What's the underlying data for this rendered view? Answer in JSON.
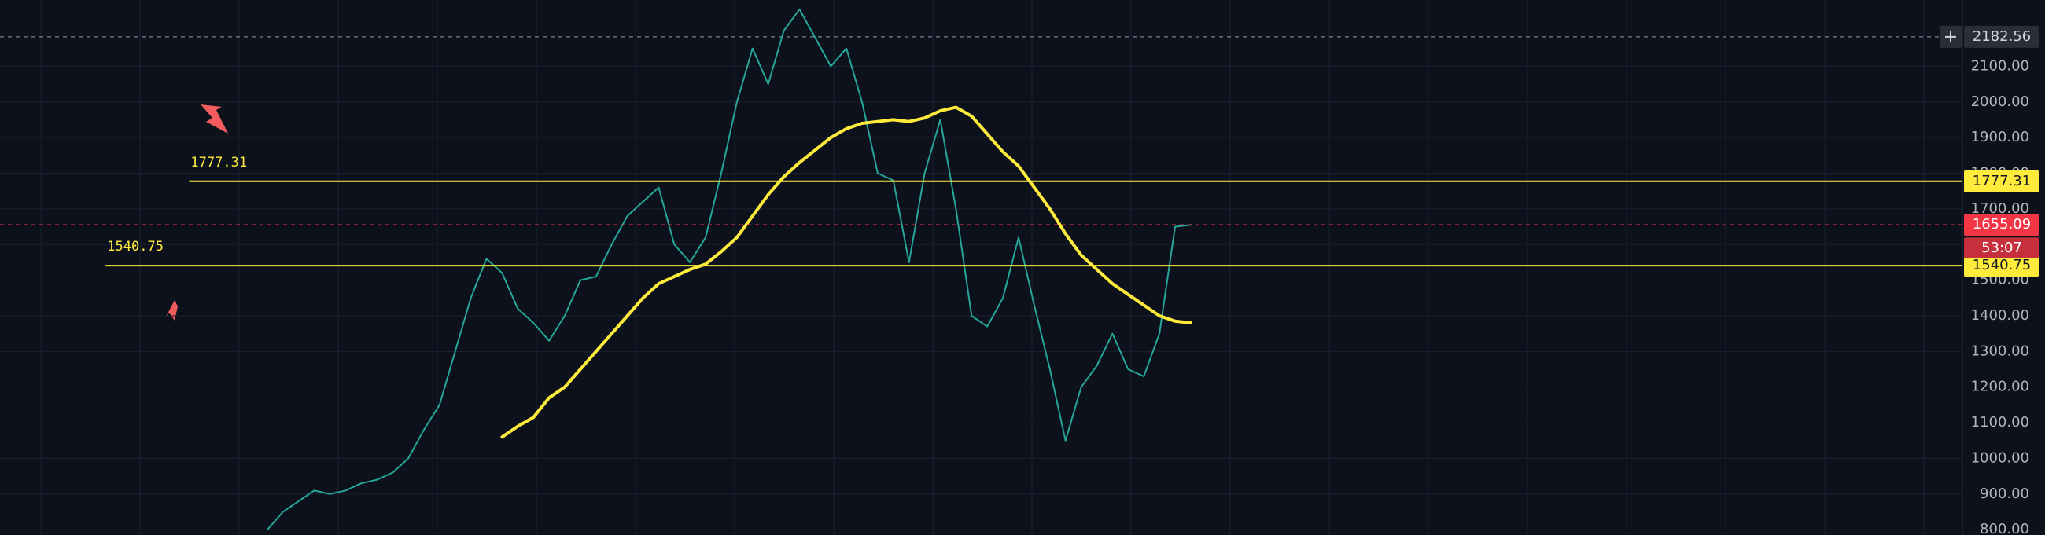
{
  "chart_data": {
    "type": "line",
    "ylim": [
      785,
      2286
    ],
    "yticks": [
      {
        "value": 800,
        "label": "800.00"
      },
      {
        "value": 900,
        "label": "900.00"
      },
      {
        "value": 1000,
        "label": "1000.00"
      },
      {
        "value": 1100,
        "label": "1100.00"
      },
      {
        "value": 1200,
        "label": "1200.00"
      },
      {
        "value": 1300,
        "label": "1300.00"
      },
      {
        "value": 1400,
        "label": "1400.00"
      },
      {
        "value": 1500,
        "label": "1500.00"
      },
      {
        "value": 1600,
        "label": "1600.00"
      },
      {
        "value": 1700,
        "label": "1700.00"
      },
      {
        "value": 1800,
        "label": "1800.00"
      },
      {
        "value": 1900,
        "label": "1900.00"
      },
      {
        "value": 2000,
        "label": "2000.00"
      },
      {
        "value": 2100,
        "label": "2100.00"
      }
    ],
    "grid": true,
    "series": [
      {
        "color": "#26a69a",
        "values": [
          800,
          850,
          880,
          910,
          900,
          910,
          930,
          940,
          960,
          1000,
          1080,
          1150,
          1300,
          1450,
          1560,
          1520,
          1420,
          1380,
          1330,
          1400,
          1500,
          1510,
          1600,
          1680,
          1720,
          1760,
          1600,
          1550,
          1620,
          1800,
          2000,
          2150,
          2050,
          2200,
          2260,
          2180,
          2100,
          2150,
          2000,
          1800,
          1780,
          1550,
          1800,
          1950,
          1700,
          1400,
          1370,
          1450,
          1620,
          1430,
          1250,
          1050,
          1200,
          1260,
          1350,
          1250,
          1230,
          1350,
          1650,
          1655
        ]
      },
      {
        "color": "#ffeb3b",
        "values": [
          null,
          null,
          null,
          null,
          null,
          null,
          null,
          null,
          null,
          null,
          null,
          null,
          null,
          null,
          null,
          1060,
          1090,
          1115,
          1170,
          1200,
          1250,
          1300,
          1350,
          1400,
          1450,
          1490,
          1510,
          1530,
          1545,
          1580,
          1620,
          1680,
          1740,
          1790,
          1830,
          1865,
          1900,
          1925,
          1940,
          1945,
          1950,
          1945,
          1955,
          1975,
          1985,
          1960,
          1910,
          1860,
          1820,
          1760,
          1700,
          1630,
          1570,
          1530,
          1490,
          1460,
          1430,
          1400,
          1385,
          1380
        ]
      }
    ],
    "hlines": [
      {
        "value": 1777.31,
        "color": "#ffeb3b"
      },
      {
        "value": 1540.75,
        "color": "#ffeb3b"
      }
    ],
    "last_price": 1655.09,
    "last_price_color": "#f23645",
    "countdown": "53:07",
    "crosshair_price": 2182.56
  }
}
